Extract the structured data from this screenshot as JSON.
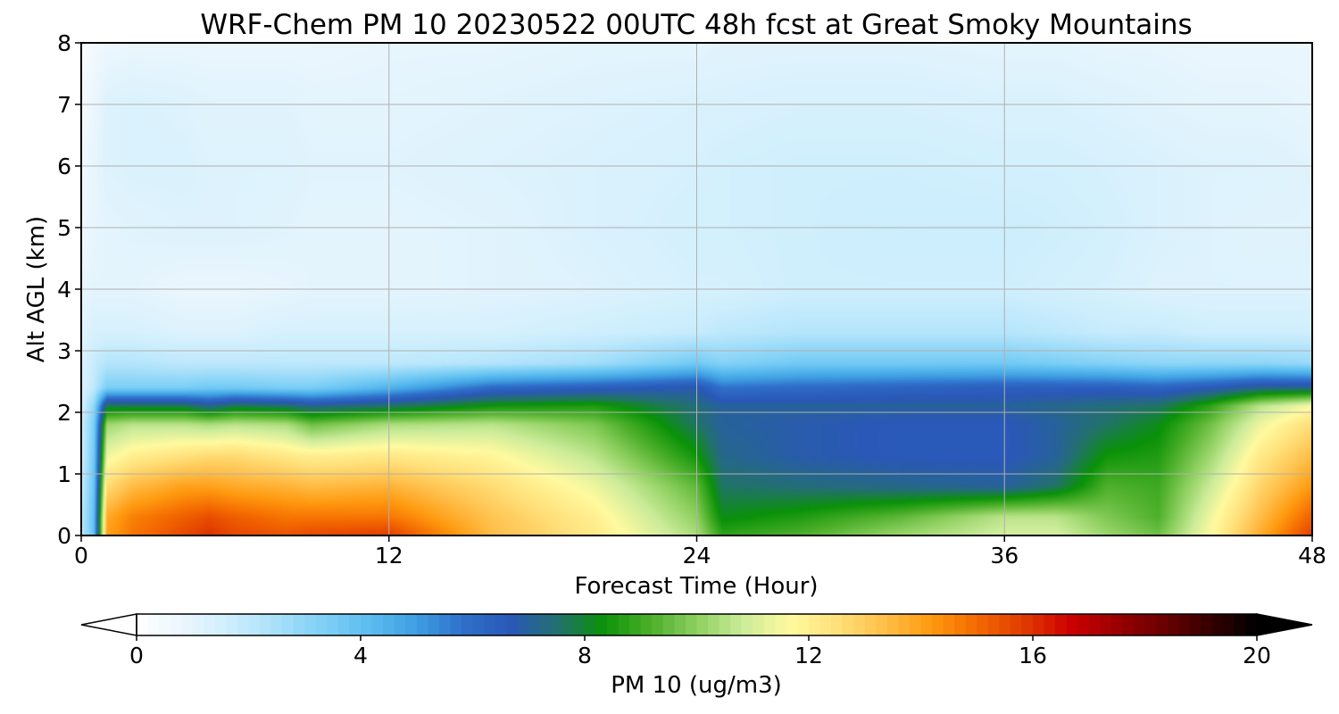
{
  "chart_data": {
    "type": "heatmap",
    "title": "WRF-Chem PM 10  20230522 00UTC 48h fcst at Great Smoky Mountains",
    "xlabel": "Forecast Time (Hour)",
    "ylabel": "Alt AGL (km)",
    "xlim": [
      0,
      48
    ],
    "ylim": [
      0,
      8
    ],
    "xticks": [
      0,
      12,
      24,
      36,
      48
    ],
    "yticks": [
      0,
      1,
      2,
      3,
      4,
      5,
      6,
      7,
      8
    ],
    "grid": true,
    "colorbar": {
      "label": "PM 10  (ug/m3)",
      "range": [
        0,
        20
      ],
      "ticks": [
        0,
        4,
        8,
        12,
        16,
        20
      ],
      "extend": "both",
      "orientation": "horizontal",
      "colors": [
        "#ffffff",
        "#eaf6fd",
        "#cdeefd",
        "#a8e0fa",
        "#7fd0f6",
        "#5bbcf0",
        "#3f9fe2",
        "#2f6fca",
        "#2a58b8",
        "#237070",
        "#0a9208",
        "#4caf2a",
        "#8ed060",
        "#ccec9a",
        "#fffaa0",
        "#ffe07a",
        "#ffbf4a",
        "#ff9a10",
        "#f46a00",
        "#e03c00",
        "#cc0000",
        "#9a0000",
        "#6a0000",
        "#360000",
        "#000000"
      ]
    },
    "x": [
      0,
      0.5,
      1,
      2,
      4,
      5,
      6,
      8,
      9,
      12,
      16,
      20,
      24,
      25,
      28,
      32,
      36,
      38,
      40,
      42,
      44,
      46,
      48
    ],
    "y": [
      0,
      0.3,
      0.8,
      1.3,
      1.8,
      2.1,
      2.4,
      2.8,
      3.3,
      4,
      5,
      6,
      7,
      8
    ],
    "z": [
      [
        2.0,
        4.0,
        14.0,
        14.8,
        15.6,
        16.0,
        15.6,
        15.4,
        15.6,
        15.8,
        13.4,
        12.2,
        10.4,
        8.8,
        9.2,
        10.2,
        11.0,
        11.0,
        10.2,
        9.6,
        11.6,
        13.8,
        15.8
      ],
      [
        2.0,
        4.0,
        13.8,
        14.6,
        15.2,
        15.5,
        15.2,
        14.8,
        14.8,
        14.8,
        13.2,
        12.0,
        10.0,
        8.2,
        8.6,
        9.4,
        10.6,
        10.6,
        9.8,
        9.2,
        11.4,
        13.4,
        15.2
      ],
      [
        1.8,
        3.8,
        12.6,
        13.4,
        14.0,
        14.0,
        13.8,
        13.6,
        13.4,
        13.6,
        12.6,
        11.4,
        9.4,
        7.6,
        7.4,
        7.2,
        7.0,
        7.6,
        9.2,
        9.0,
        10.8,
        12.8,
        14.2
      ],
      [
        1.6,
        3.6,
        11.4,
        12.0,
        12.4,
        12.6,
        12.6,
        12.2,
        12.0,
        12.2,
        11.8,
        10.6,
        8.4,
        7.2,
        6.8,
        6.6,
        6.6,
        7.0,
        8.4,
        8.6,
        10.2,
        12.2,
        13.4
      ],
      [
        1.6,
        3.4,
        10.2,
        10.6,
        10.6,
        10.4,
        10.6,
        10.4,
        9.6,
        10.4,
        10.6,
        9.8,
        7.6,
        7.0,
        6.8,
        6.6,
        6.6,
        7.0,
        7.6,
        8.2,
        9.6,
        11.4,
        12.6
      ],
      [
        1.4,
        3.0,
        7.8,
        7.8,
        7.8,
        7.2,
        7.8,
        7.6,
        7.2,
        7.6,
        8.4,
        8.6,
        7.4,
        7.0,
        7.0,
        7.0,
        7.0,
        7.2,
        7.4,
        7.6,
        8.8,
        10.6,
        11.6
      ],
      [
        1.2,
        2.0,
        3.4,
        3.4,
        3.4,
        3.6,
        3.6,
        3.4,
        3.4,
        4.4,
        6.0,
        6.4,
        6.8,
        5.8,
        6.0,
        6.2,
        6.4,
        6.4,
        6.4,
        6.2,
        6.6,
        7.2,
        7.2
      ],
      [
        1.2,
        1.8,
        2.2,
        2.2,
        2.0,
        2.0,
        2.0,
        2.0,
        2.0,
        2.0,
        2.2,
        2.6,
        3.6,
        3.2,
        3.6,
        3.6,
        3.6,
        3.4,
        3.2,
        3.0,
        3.0,
        3.0,
        2.8
      ],
      [
        1.0,
        1.4,
        1.4,
        1.4,
        1.2,
        1.2,
        1.2,
        1.4,
        1.4,
        1.4,
        1.4,
        1.6,
        1.8,
        2.0,
        2.2,
        2.2,
        2.2,
        2.0,
        1.8,
        1.8,
        1.6,
        1.6,
        1.6
      ],
      [
        0.8,
        1.0,
        1.0,
        1.0,
        0.8,
        0.8,
        0.8,
        0.9,
        1.0,
        1.0,
        1.1,
        1.2,
        1.4,
        1.4,
        1.6,
        1.6,
        1.6,
        1.5,
        1.4,
        1.2,
        1.2,
        1.2,
        1.2
      ],
      [
        0.6,
        0.9,
        1.0,
        1.1,
        1.2,
        1.2,
        1.2,
        1.1,
        1.0,
        1.0,
        1.1,
        1.3,
        1.5,
        1.5,
        1.6,
        1.7,
        1.7,
        1.6,
        1.5,
        1.3,
        1.2,
        1.1,
        1.1
      ],
      [
        0.5,
        0.9,
        1.2,
        1.3,
        1.3,
        1.2,
        1.2,
        1.2,
        1.1,
        1.1,
        1.2,
        1.3,
        1.4,
        1.5,
        1.6,
        1.6,
        1.5,
        1.5,
        1.4,
        1.3,
        1.2,
        1.2,
        1.1
      ],
      [
        0.4,
        0.8,
        1.2,
        1.3,
        1.2,
        1.1,
        1.1,
        1.1,
        1.0,
        1.0,
        1.1,
        1.2,
        1.3,
        1.3,
        1.4,
        1.4,
        1.3,
        1.3,
        1.2,
        1.1,
        1.0,
        1.0,
        0.9
      ],
      [
        0.3,
        0.5,
        0.7,
        0.8,
        0.8,
        0.8,
        0.8,
        0.8,
        0.8,
        0.9,
        0.9,
        1.0,
        1.0,
        1.1,
        1.1,
        1.1,
        1.0,
        1.0,
        0.9,
        0.9,
        0.8,
        0.8,
        0.8
      ]
    ]
  }
}
